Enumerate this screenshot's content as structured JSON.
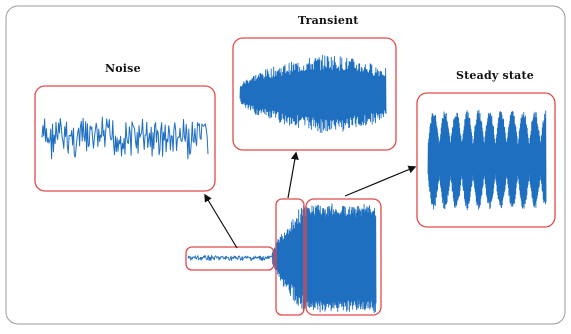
{
  "labels": {
    "noise": "Noise",
    "transient": "Transient",
    "steady_state": "Steady state"
  },
  "colors": {
    "signal": "#1f6fc1",
    "box_border": "#e04a4a",
    "frame": "#9a9a9a",
    "arrow": "#111111"
  },
  "icons": {
    "arrow": "arrowhead"
  }
}
